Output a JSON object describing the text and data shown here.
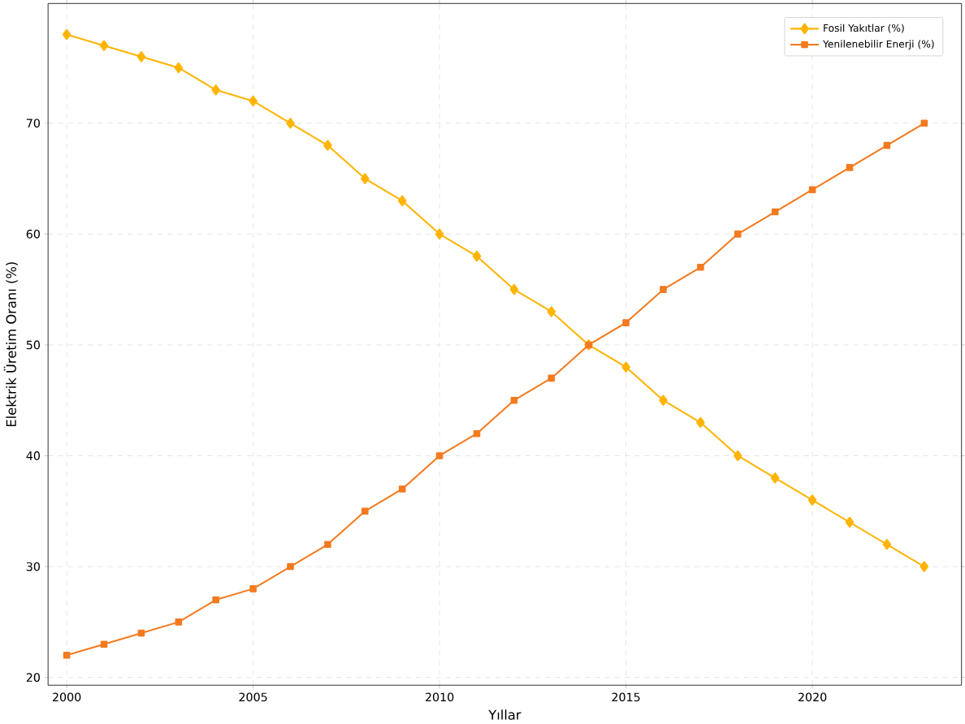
{
  "chart_data": {
    "type": "line",
    "xlabel": "Yıllar",
    "ylabel": "Elektrik Üretim Oranı (%)",
    "x": [
      2000,
      2001,
      2002,
      2003,
      2004,
      2005,
      2006,
      2007,
      2008,
      2009,
      2010,
      2011,
      2012,
      2013,
      2014,
      2015,
      2016,
      2017,
      2018,
      2019,
      2020,
      2021,
      2022,
      2023
    ],
    "series": [
      {
        "name": "Fosil Yakıtlar (%)",
        "color": "#ffb400",
        "marker": "diamond",
        "values": [
          78,
          77,
          76,
          75,
          73,
          72,
          70,
          68,
          65,
          63,
          60,
          58,
          55,
          53,
          50,
          48,
          45,
          43,
          40,
          38,
          36,
          34,
          32,
          30
        ]
      },
      {
        "name": "Yenilenebilir Enerji (%)",
        "color": "#f47a1f",
        "marker": "square",
        "values": [
          22,
          23,
          24,
          25,
          27,
          28,
          30,
          32,
          35,
          37,
          40,
          42,
          45,
          47,
          50,
          52,
          55,
          57,
          60,
          62,
          64,
          66,
          68,
          70
        ]
      }
    ],
    "xlim": [
      1999.5,
      2024
    ],
    "ylim": [
      19.3,
      80.8
    ],
    "xticks": [
      2000,
      2005,
      2010,
      2015,
      2020
    ],
    "yticks": [
      20,
      30,
      40,
      50,
      60,
      70
    ],
    "grid": true,
    "legend": "top right",
    "line_style": "solid"
  }
}
